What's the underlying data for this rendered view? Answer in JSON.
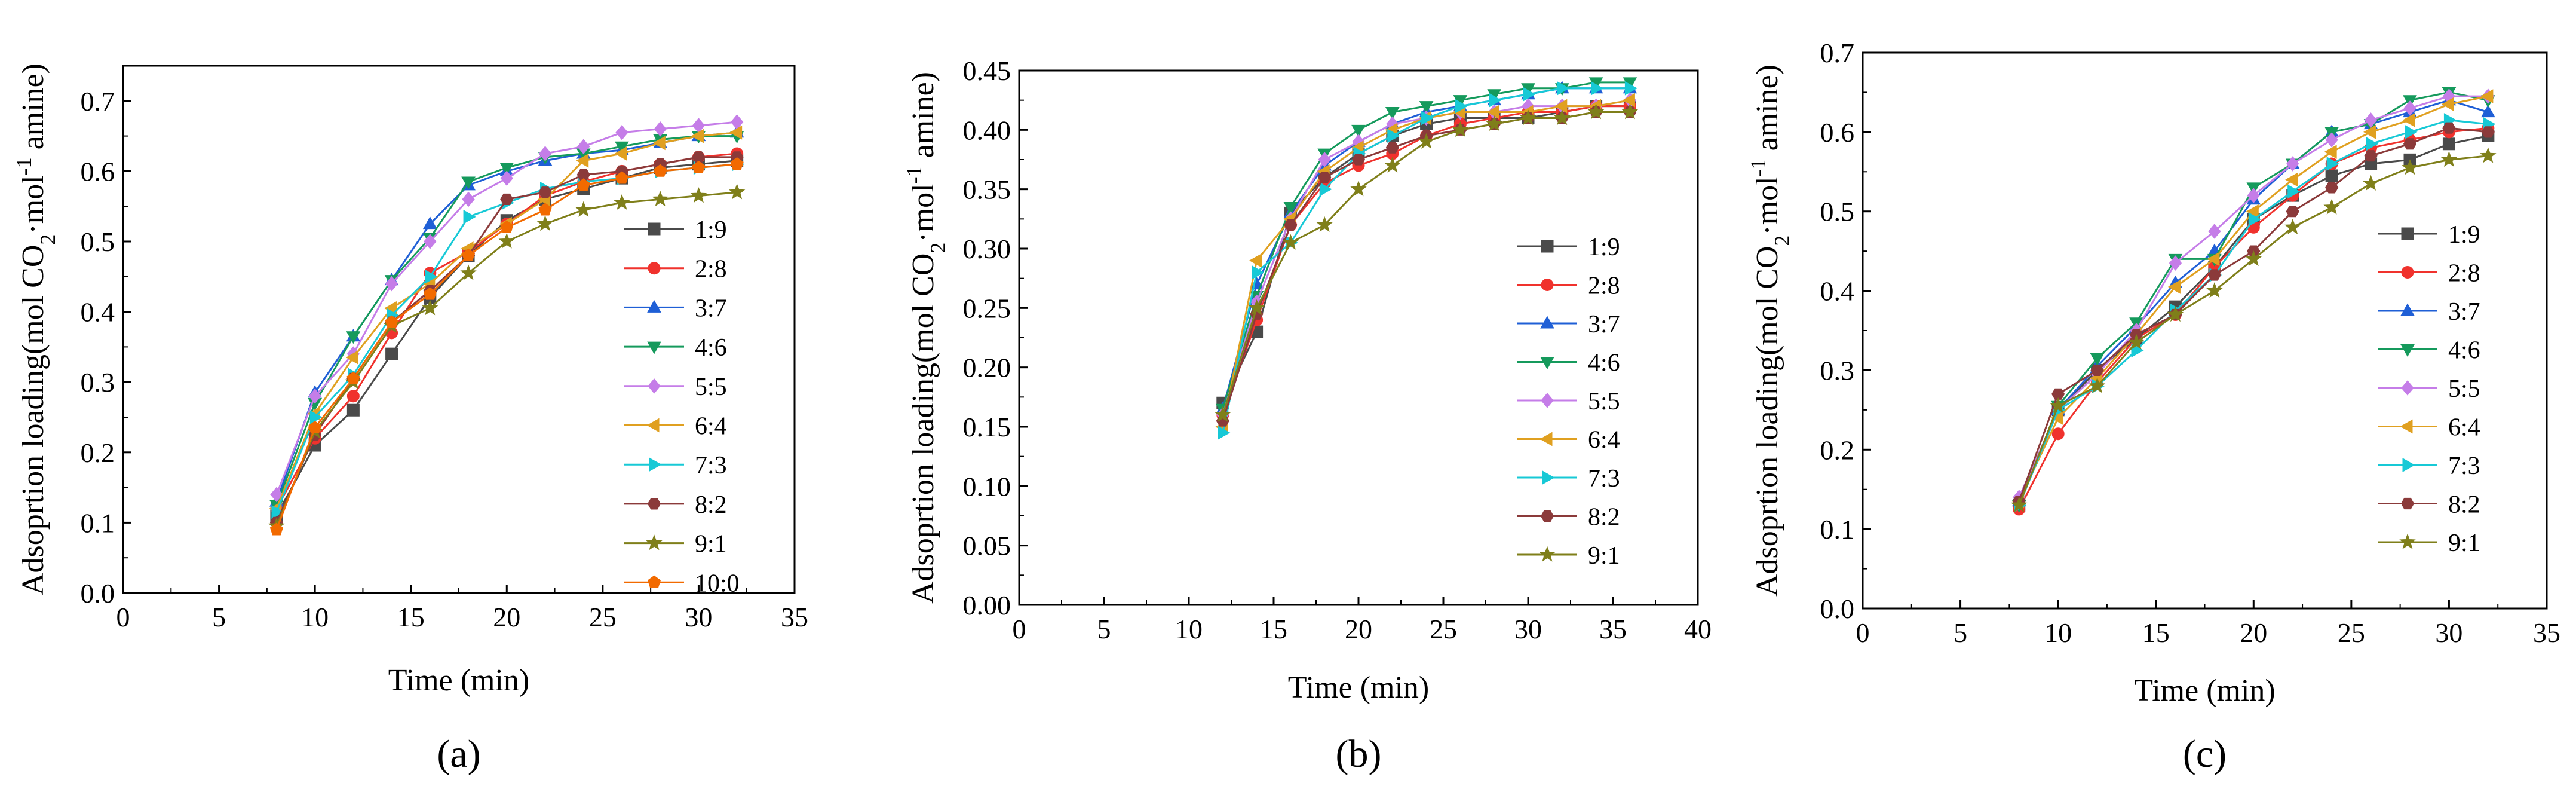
{
  "chart_data": [
    {
      "type": "line",
      "caption": "(a)",
      "xlabel": "Time (min)",
      "ylabel": "Adsoprtion loading(mol CO2·mol-1 amine)",
      "ylabel_parts": {
        "a": "Adsoprtion loading(mol CO",
        "sub": "2",
        "b": "·mol",
        "sup": "-1",
        "c": " amine)"
      },
      "xlim": [
        0,
        35
      ],
      "ylim": [
        0,
        0.75
      ],
      "xticks": [
        0,
        5,
        10,
        15,
        20,
        25,
        30,
        35
      ],
      "yticks": [
        0,
        0.1,
        0.2,
        0.3,
        0.4,
        0.5,
        0.6,
        0.7
      ],
      "ytick_labels": [
        "0.0",
        "0.1",
        "0.2",
        "0.3",
        "0.4",
        "0.5",
        "0.6",
        "0.7"
      ],
      "legend_position": "bottom-right",
      "x": [
        8,
        10,
        12,
        14,
        16,
        18,
        20,
        22,
        24,
        26,
        28,
        30,
        32
      ],
      "series": [
        {
          "name": "1:9",
          "values": [
            0.11,
            0.21,
            0.26,
            0.34,
            0.42,
            0.48,
            0.53,
            0.56,
            0.575,
            0.59,
            0.605,
            0.61,
            0.615
          ]
        },
        {
          "name": "2:8",
          "values": [
            0.12,
            0.22,
            0.28,
            0.37,
            0.455,
            0.485,
            0.525,
            0.565,
            0.585,
            0.6,
            0.61,
            0.62,
            0.625
          ]
        },
        {
          "name": "3:7",
          "values": [
            0.13,
            0.285,
            0.365,
            0.445,
            0.525,
            0.58,
            0.6,
            0.615,
            0.625,
            0.63,
            0.64,
            0.65,
            0.655
          ]
        },
        {
          "name": "4:6",
          "values": [
            0.125,
            0.27,
            0.365,
            0.445,
            0.505,
            0.585,
            0.605,
            0.62,
            0.625,
            0.635,
            0.645,
            0.65,
            0.65
          ]
        },
        {
          "name": "5:5",
          "values": [
            0.14,
            0.28,
            0.34,
            0.44,
            0.5,
            0.56,
            0.59,
            0.625,
            0.635,
            0.655,
            0.66,
            0.665,
            0.67
          ]
        },
        {
          "name": "6:4",
          "values": [
            0.12,
            0.255,
            0.335,
            0.405,
            0.44,
            0.49,
            0.525,
            0.56,
            0.615,
            0.625,
            0.64,
            0.65,
            0.655
          ]
        },
        {
          "name": "7:3",
          "values": [
            0.115,
            0.25,
            0.31,
            0.395,
            0.45,
            0.535,
            0.555,
            0.575,
            0.585,
            0.59,
            0.6,
            0.605,
            0.61
          ]
        },
        {
          "name": "8:2",
          "values": [
            0.1,
            0.225,
            0.305,
            0.385,
            0.43,
            0.48,
            0.56,
            0.57,
            0.595,
            0.6,
            0.61,
            0.62,
            0.62
          ]
        },
        {
          "name": "9:1",
          "values": [
            0.095,
            0.23,
            0.3,
            0.38,
            0.405,
            0.455,
            0.5,
            0.525,
            0.545,
            0.555,
            0.56,
            0.565,
            0.57
          ]
        },
        {
          "name": "10:0",
          "values": [
            0.09,
            0.235,
            0.305,
            0.385,
            0.425,
            0.48,
            0.52,
            0.545,
            0.58,
            0.59,
            0.6,
            0.605,
            0.61
          ]
        }
      ]
    },
    {
      "type": "line",
      "caption": "(b)",
      "xlabel": "Time (min)",
      "ylabel": "Adsoprtion loading(mol CO2·mol-1 amine)",
      "ylabel_parts": {
        "a": "Adsoprtion loading(mol CO",
        "sub": "2",
        "b": "·mol",
        "sup": "-1",
        "c": " amine)"
      },
      "xlim": [
        0,
        40
      ],
      "ylim": [
        0,
        0.45
      ],
      "xticks": [
        0,
        5,
        10,
        15,
        20,
        25,
        30,
        35,
        40
      ],
      "yticks": [
        0,
        0.05,
        0.1,
        0.15,
        0.2,
        0.25,
        0.3,
        0.35,
        0.4,
        0.45
      ],
      "ytick_labels": [
        "0.00",
        "0.05",
        "0.10",
        "0.15",
        "0.20",
        "0.25",
        "0.30",
        "0.35",
        "0.40",
        "0.45"
      ],
      "legend_position": "right",
      "x": [
        12,
        14,
        16,
        18,
        20,
        22,
        24,
        26,
        28,
        30,
        32,
        34,
        36
      ],
      "series": [
        {
          "name": "1:9",
          "values": [
            0.17,
            0.23,
            0.33,
            0.36,
            0.38,
            0.395,
            0.405,
            0.41,
            0.41,
            0.41,
            0.415,
            0.42,
            0.42
          ]
        },
        {
          "name": "2:8",
          "values": [
            0.16,
            0.24,
            0.32,
            0.355,
            0.37,
            0.38,
            0.395,
            0.405,
            0.41,
            0.415,
            0.415,
            0.42,
            0.42
          ]
        },
        {
          "name": "3:7",
          "values": [
            0.165,
            0.27,
            0.33,
            0.37,
            0.39,
            0.405,
            0.415,
            0.42,
            0.425,
            0.43,
            0.435,
            0.435,
            0.435
          ]
        },
        {
          "name": "4:6",
          "values": [
            0.165,
            0.26,
            0.335,
            0.38,
            0.4,
            0.415,
            0.42,
            0.425,
            0.43,
            0.435,
            0.435,
            0.44,
            0.44
          ]
        },
        {
          "name": "5:5",
          "values": [
            0.16,
            0.255,
            0.325,
            0.375,
            0.39,
            0.405,
            0.41,
            0.415,
            0.415,
            0.42,
            0.42,
            0.42,
            0.425
          ]
        },
        {
          "name": "6:4",
          "values": [
            0.15,
            0.29,
            0.325,
            0.365,
            0.385,
            0.4,
            0.41,
            0.415,
            0.415,
            0.415,
            0.42,
            0.42,
            0.425
          ]
        },
        {
          "name": "7:3",
          "values": [
            0.145,
            0.28,
            0.305,
            0.35,
            0.38,
            0.395,
            0.41,
            0.42,
            0.425,
            0.43,
            0.435,
            0.435,
            0.435
          ]
        },
        {
          "name": "8:2",
          "values": [
            0.155,
            0.245,
            0.32,
            0.36,
            0.375,
            0.385,
            0.395,
            0.4,
            0.405,
            0.41,
            0.41,
            0.415,
            0.415
          ]
        },
        {
          "name": "9:1",
          "values": [
            0.16,
            0.25,
            0.305,
            0.32,
            0.35,
            0.37,
            0.39,
            0.4,
            0.405,
            0.41,
            0.41,
            0.415,
            0.415
          ]
        }
      ]
    },
    {
      "type": "line",
      "caption": "(c)",
      "xlabel": "Time (min)",
      "ylabel": "Adsoprtion loading(mol CO2·mol-1 amine)",
      "ylabel_parts": {
        "a": "Adsoprtion loading(mol CO",
        "sub": "2",
        "b": "·mol",
        "sup": "-1",
        "c": " amine)"
      },
      "xlim": [
        0,
        35
      ],
      "ylim": [
        0,
        0.7
      ],
      "xticks": [
        0,
        5,
        10,
        15,
        20,
        25,
        30,
        35
      ],
      "yticks": [
        0,
        0.1,
        0.2,
        0.3,
        0.4,
        0.5,
        0.6,
        0.7
      ],
      "ytick_labels": [
        "0.0",
        "0.1",
        "0.2",
        "0.3",
        "0.4",
        "0.5",
        "0.6",
        "0.7"
      ],
      "legend_position": "bottom-right",
      "x": [
        8,
        10,
        12,
        14,
        16,
        18,
        20,
        22,
        24,
        26,
        28,
        30,
        32
      ],
      "series": [
        {
          "name": "1:9",
          "values": [
            0.13,
            0.25,
            0.3,
            0.34,
            0.38,
            0.43,
            0.49,
            0.52,
            0.545,
            0.56,
            0.565,
            0.585,
            0.595
          ]
        },
        {
          "name": "2:8",
          "values": [
            0.125,
            0.22,
            0.285,
            0.34,
            0.37,
            0.43,
            0.48,
            0.52,
            0.56,
            0.58,
            0.59,
            0.6,
            0.605
          ]
        },
        {
          "name": "3:7",
          "values": [
            0.135,
            0.25,
            0.305,
            0.355,
            0.41,
            0.45,
            0.515,
            0.56,
            0.6,
            0.61,
            0.625,
            0.64,
            0.625
          ]
        },
        {
          "name": "4:6",
          "values": [
            0.13,
            0.255,
            0.315,
            0.36,
            0.44,
            0.44,
            0.53,
            0.56,
            0.6,
            0.61,
            0.64,
            0.65,
            0.64
          ]
        },
        {
          "name": "5:5",
          "values": [
            0.14,
            0.25,
            0.295,
            0.35,
            0.435,
            0.475,
            0.52,
            0.56,
            0.59,
            0.615,
            0.63,
            0.645,
            0.645
          ]
        },
        {
          "name": "6:4",
          "values": [
            0.135,
            0.24,
            0.29,
            0.345,
            0.405,
            0.44,
            0.5,
            0.54,
            0.575,
            0.6,
            0.615,
            0.635,
            0.645
          ]
        },
        {
          "name": "7:3",
          "values": [
            0.13,
            0.25,
            0.28,
            0.325,
            0.375,
            0.42,
            0.49,
            0.525,
            0.56,
            0.585,
            0.6,
            0.615,
            0.61
          ]
        },
        {
          "name": "8:2",
          "values": [
            0.135,
            0.27,
            0.3,
            0.345,
            0.37,
            0.42,
            0.45,
            0.5,
            0.53,
            0.57,
            0.585,
            0.605,
            0.6
          ]
        },
        {
          "name": "9:1",
          "values": [
            0.13,
            0.255,
            0.28,
            0.335,
            0.37,
            0.4,
            0.44,
            0.48,
            0.505,
            0.535,
            0.555,
            0.565,
            0.57
          ]
        }
      ]
    }
  ],
  "series_style": {
    "1:9": {
      "color": "#4a4a4a",
      "marker": "square"
    },
    "2:8": {
      "color": "#f0322d",
      "marker": "circle"
    },
    "3:7": {
      "color": "#1f5fd6",
      "marker": "triangle-up"
    },
    "4:6": {
      "color": "#159a5c",
      "marker": "triangle-down"
    },
    "5:5": {
      "color": "#c57de8",
      "marker": "diamond"
    },
    "6:4": {
      "color": "#e0a020",
      "marker": "triangle-left"
    },
    "7:3": {
      "color": "#17c9d6",
      "marker": "triangle-right"
    },
    "8:2": {
      "color": "#8b3a3a",
      "marker": "hexagon"
    },
    "9:1": {
      "color": "#7f7f1a",
      "marker": "star"
    },
    "10:0": {
      "color": "#f26a00",
      "marker": "pentagon"
    }
  }
}
